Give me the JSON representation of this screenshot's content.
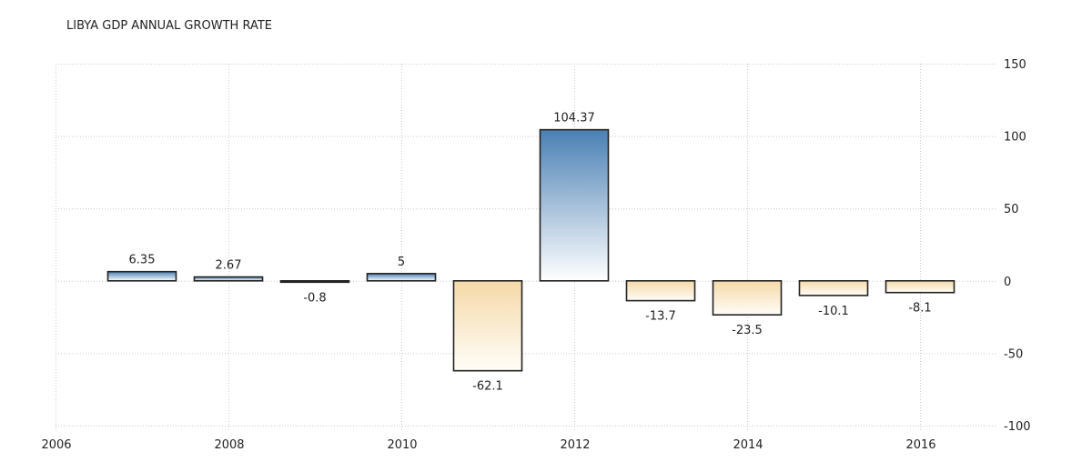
{
  "title": "LIBYA GDP ANNUAL GROWTH RATE",
  "colors": {
    "positive_top": "#4a80b4",
    "positive_bottom": "#ffffff",
    "negative_top": "#f5d9a8",
    "negative_bottom": "#fffdf8",
    "bar_border": "#222222",
    "grid": "#cccccc",
    "text": "#222222"
  },
  "chart_data": {
    "type": "bar",
    "title": "LIBYA GDP ANNUAL GROWTH RATE",
    "xlabel": "",
    "ylabel": "",
    "categories": [
      "2007",
      "2008",
      "2009",
      "2010",
      "2011",
      "2012",
      "2013",
      "2014",
      "2015",
      "2016"
    ],
    "values": [
      6.35,
      2.67,
      -0.8,
      5,
      -62.1,
      104.37,
      -13.7,
      -23.5,
      -10.1,
      -8.1
    ],
    "data_labels": [
      "6.35",
      "2.67",
      "-0.8",
      "5",
      "-62.1",
      "104.37",
      "-13.7",
      "-23.5",
      "-10.1",
      "-8.1"
    ],
    "x_ticks": [
      "2006",
      "2008",
      "2010",
      "2012",
      "2014",
      "2016"
    ],
    "y_ticks": [
      "150",
      "100",
      "50",
      "0",
      "-50",
      "-100"
    ],
    "ylim": [
      -100,
      150
    ],
    "xlim": [
      2006,
      2017
    ],
    "y_axis_position": "right",
    "grid": true,
    "legend": null
  }
}
